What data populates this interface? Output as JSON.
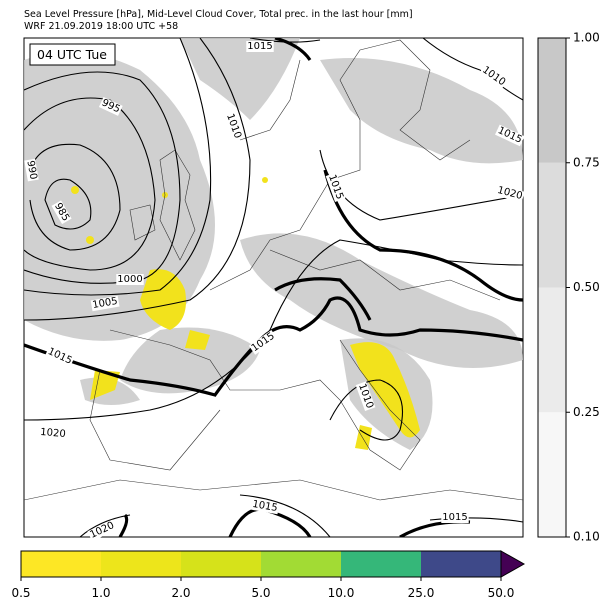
{
  "header": {
    "title": "Sea Level Pressure [hPa], Mid-Level Cloud Cover, Total prec. in the last hour [mm]",
    "subtitle": "WRF 21.09.2019 18:00 UTC +58"
  },
  "map": {
    "time_label": "04 UTC Tue",
    "isobar_labels": [
      "1015",
      "1010",
      "1015",
      "1020",
      "1015",
      "1010",
      "995",
      "990",
      "985",
      "1000",
      "1005",
      "1015",
      "1020",
      "1015",
      "1010",
      "1015",
      "1015",
      "1020"
    ]
  },
  "cloud_colorbar": {
    "ticks": [
      "0.10",
      "0.25",
      "0.50",
      "0.75",
      "1.00"
    ],
    "colors": [
      "#f7f7f7",
      "#ebebeb",
      "#dcdcdc",
      "#c8c8c8"
    ]
  },
  "precip_colorbar": {
    "ticks": [
      "0.5",
      "1.0",
      "2.0",
      "5.0",
      "10.0",
      "25.0",
      "50.0"
    ],
    "colors": [
      "#fde725",
      "#ede51b",
      "#d6e21a",
      "#a2db34",
      "#35b779",
      "#3e4989"
    ],
    "extend_color": "#440154"
  }
}
